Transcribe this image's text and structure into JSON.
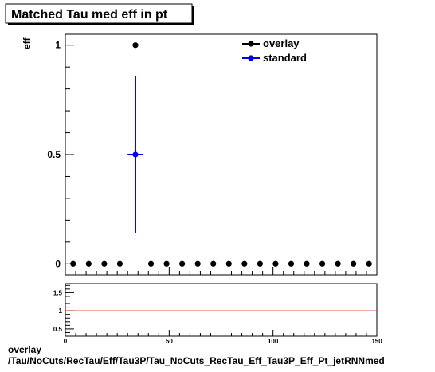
{
  "chart_data": {
    "type": "scatter",
    "title": "Matched Tau med eff in pt",
    "ylabel": "eff",
    "xlabel": "",
    "xlim": [
      0,
      150
    ],
    "ylim": [
      -0.05,
      1.05
    ],
    "x_ticks": [
      0,
      50,
      100,
      150
    ],
    "y_ticks": [
      0,
      0.5,
      1
    ],
    "y_tick_labels": [
      "0",
      "0.5",
      "1"
    ],
    "legend_position": "top-right",
    "series": [
      {
        "name": "overlay",
        "color": "#000000",
        "x": [
          3.75,
          11.25,
          18.75,
          26.25,
          33.75,
          41.25,
          48.75,
          56.25,
          63.75,
          71.25,
          78.75,
          86.25,
          93.75,
          101.25,
          108.75,
          116.25,
          123.75,
          131.25,
          138.75,
          146.25
        ],
        "y": [
          0,
          0,
          0,
          0,
          1,
          0,
          0,
          0,
          0,
          0,
          0,
          0,
          0,
          0,
          0,
          0,
          0,
          0,
          0,
          0
        ]
      },
      {
        "name": "standard",
        "color": "#0000ee",
        "x": [
          33.75
        ],
        "y": [
          0.5
        ],
        "x_err": [
          3.75
        ],
        "y_err_low": [
          0.36
        ],
        "y_err_high": [
          0.36
        ]
      }
    ],
    "ratio": {
      "ylim": [
        0.3,
        1.75
      ],
      "y_ticks": [
        0.5,
        1,
        1.5
      ],
      "y_tick_labels": [
        "0.5",
        "1",
        "1.5"
      ],
      "x_ticks": [
        0,
        50,
        100,
        150
      ],
      "x_tick_labels": [
        "0",
        "50",
        "100",
        "150"
      ],
      "reference_value": 1,
      "reference_color": "#cc2200"
    }
  },
  "footer": {
    "line1": "overlay",
    "line2": "/Tau/NoCuts/RecTau/Eff/Tau3P/Tau_NoCuts_RecTau_Eff_Tau3P_Eff_Pt_jetRNNmed"
  }
}
